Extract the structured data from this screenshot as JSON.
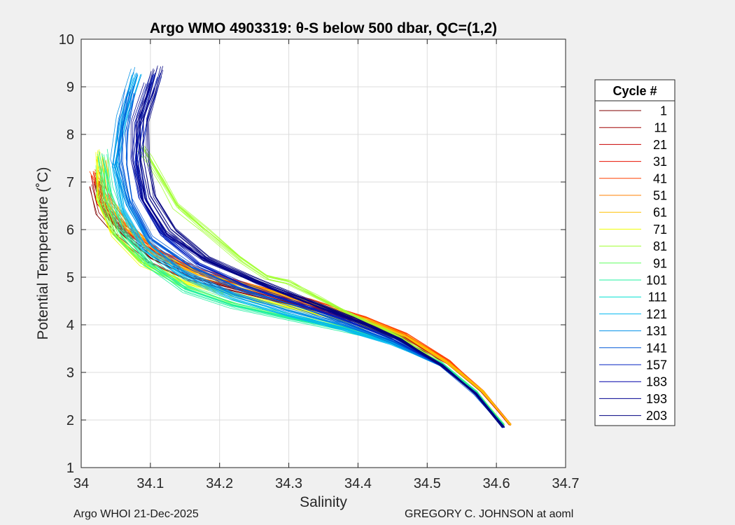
{
  "chart_data": {
    "type": "line",
    "title": "Argo WMO 4903319: θ-S below 500 dbar,  QC=(1,2)",
    "xlabel": "Salinity",
    "ylabel": "Potential Temperature (˚C)",
    "xlim": [
      34,
      34.7
    ],
    "ylim": [
      1,
      10
    ],
    "xticks": [
      "34",
      "34.1",
      "34.2",
      "34.3",
      "34.4",
      "34.5",
      "34.6",
      "34.7"
    ],
    "yticks": [
      "1",
      "2",
      "3",
      "4",
      "5",
      "6",
      "7",
      "8",
      "9",
      "10"
    ],
    "grid": true,
    "legend": {
      "title": "Cycle #",
      "placement": "right-outside",
      "entries": [
        {
          "label": "1",
          "color": "#7f0000"
        },
        {
          "label": "11",
          "color": "#a00000"
        },
        {
          "label": "21",
          "color": "#c80000"
        },
        {
          "label": "31",
          "color": "#e81000"
        },
        {
          "label": "41",
          "color": "#ff4000"
        },
        {
          "label": "51",
          "color": "#ff8000"
        },
        {
          "label": "61",
          "color": "#ffc000"
        },
        {
          "label": "71",
          "color": "#f0ff00"
        },
        {
          "label": "81",
          "color": "#a0ff30"
        },
        {
          "label": "91",
          "color": "#60ff60"
        },
        {
          "label": "101",
          "color": "#20f0a0"
        },
        {
          "label": "111",
          "color": "#00e0d0"
        },
        {
          "label": "121",
          "color": "#00b8f0"
        },
        {
          "label": "131",
          "color": "#0090e8"
        },
        {
          "label": "141",
          "color": "#0058d8"
        },
        {
          "label": "157",
          "color": "#0020c0"
        },
        {
          "label": "183",
          "color": "#0000a8"
        },
        {
          "label": "193",
          "color": "#000090"
        },
        {
          "label": "203",
          "color": "#000080"
        }
      ]
    },
    "series": [
      {
        "color": "#7f0000",
        "x": [
          34.62,
          34.58,
          34.53,
          34.47,
          34.4,
          34.32,
          34.24,
          34.16,
          34.1,
          34.06,
          34.03,
          34.02
        ],
        "y": [
          1.9,
          2.6,
          3.2,
          3.7,
          4.1,
          4.4,
          4.7,
          5.0,
          5.4,
          5.9,
          6.4,
          7.0
        ]
      },
      {
        "color": "#c80000",
        "x": [
          34.62,
          34.58,
          34.53,
          34.47,
          34.4,
          34.32,
          34.24,
          34.17,
          34.11,
          34.06,
          34.03,
          34.02
        ],
        "y": [
          1.9,
          2.6,
          3.2,
          3.7,
          4.1,
          4.45,
          4.8,
          5.1,
          5.5,
          6.0,
          6.5,
          7.1
        ]
      },
      {
        "color": "#ff4000",
        "x": [
          34.62,
          34.58,
          34.53,
          34.47,
          34.41,
          34.33,
          34.25,
          34.17,
          34.11,
          34.07,
          34.04,
          34.02
        ],
        "y": [
          1.9,
          2.6,
          3.25,
          3.8,
          4.15,
          4.5,
          4.8,
          5.1,
          5.5,
          6.0,
          6.5,
          7.2
        ]
      },
      {
        "color": "#ffc000",
        "x": [
          34.62,
          34.58,
          34.53,
          34.47,
          34.41,
          34.33,
          34.25,
          34.17,
          34.11,
          34.07,
          34.04,
          34.03
        ],
        "y": [
          1.9,
          2.6,
          3.2,
          3.75,
          4.1,
          4.45,
          4.75,
          5.05,
          5.45,
          6.0,
          6.6,
          7.4
        ]
      },
      {
        "color": "#f0ff00",
        "x": [
          34.61,
          34.57,
          34.52,
          34.46,
          34.39,
          34.31,
          34.23,
          34.15,
          34.09,
          34.05,
          34.03,
          34.03
        ],
        "y": [
          1.9,
          2.6,
          3.2,
          3.7,
          4.05,
          4.35,
          4.6,
          4.9,
          5.3,
          5.9,
          6.6,
          7.6
        ]
      },
      {
        "color": "#a0ff30",
        "x": [
          34.61,
          34.57,
          34.52,
          34.46,
          34.4,
          34.34,
          34.3,
          34.27,
          34.23,
          34.18,
          34.14,
          34.12,
          34.1,
          34.09
        ],
        "y": [
          1.9,
          2.6,
          3.2,
          3.75,
          4.15,
          4.6,
          4.9,
          5.0,
          5.4,
          6.0,
          6.5,
          7.0,
          7.5,
          7.7
        ]
      },
      {
        "color": "#60ff60",
        "x": [
          34.61,
          34.57,
          34.52,
          34.45,
          34.38,
          34.3,
          34.22,
          34.15,
          34.09,
          34.05,
          34.03,
          34.03
        ],
        "y": [
          1.9,
          2.6,
          3.2,
          3.65,
          3.95,
          4.2,
          4.45,
          4.8,
          5.3,
          5.9,
          6.6,
          7.3
        ]
      },
      {
        "color": "#20f0a0",
        "x": [
          34.61,
          34.57,
          34.52,
          34.45,
          34.38,
          34.3,
          34.22,
          34.15,
          34.1,
          34.06,
          34.04,
          34.03
        ],
        "y": [
          1.9,
          2.6,
          3.2,
          3.65,
          3.9,
          4.15,
          4.4,
          4.75,
          5.3,
          6.0,
          6.8,
          7.6
        ]
      },
      {
        "color": "#00b8f0",
        "x": [
          34.61,
          34.57,
          34.52,
          34.45,
          34.38,
          34.3,
          34.22,
          34.15,
          34.09,
          34.06,
          34.05,
          34.06,
          34.08
        ],
        "y": [
          1.85,
          2.55,
          3.15,
          3.6,
          3.9,
          4.2,
          4.55,
          5.0,
          5.6,
          6.4,
          7.3,
          8.2,
          9.2
        ]
      },
      {
        "color": "#0090e8",
        "x": [
          34.61,
          34.57,
          34.52,
          34.45,
          34.38,
          34.3,
          34.22,
          34.15,
          34.1,
          34.07,
          34.05,
          34.06,
          34.08
        ],
        "y": [
          1.85,
          2.55,
          3.15,
          3.65,
          4.0,
          4.3,
          4.65,
          5.1,
          5.7,
          6.5,
          7.4,
          8.3,
          9.3
        ]
      },
      {
        "color": "#0058d8",
        "x": [
          34.61,
          34.57,
          34.52,
          34.45,
          34.38,
          34.31,
          34.23,
          34.16,
          34.1,
          34.07,
          34.06,
          34.06,
          34.07
        ],
        "y": [
          1.85,
          2.55,
          3.15,
          3.65,
          4.05,
          4.4,
          4.75,
          5.2,
          5.8,
          6.6,
          7.4,
          8.1,
          8.9
        ]
      },
      {
        "color": "#0020c0",
        "x": [
          34.61,
          34.57,
          34.52,
          34.45,
          34.38,
          34.31,
          34.24,
          34.17,
          34.12,
          34.09,
          34.08,
          34.09,
          34.11
        ],
        "y": [
          1.85,
          2.55,
          3.15,
          3.7,
          4.1,
          4.45,
          4.8,
          5.25,
          5.85,
          6.6,
          7.4,
          8.3,
          9.2
        ]
      },
      {
        "color": "#000090",
        "x": [
          34.61,
          34.57,
          34.52,
          34.46,
          34.39,
          34.32,
          34.25,
          34.18,
          34.12,
          34.09,
          34.08,
          34.08,
          34.1
        ],
        "y": [
          1.85,
          2.55,
          3.15,
          3.7,
          4.1,
          4.5,
          4.9,
          5.35,
          5.9,
          6.6,
          7.4,
          8.2,
          9.0
        ]
      },
      {
        "color": "#000080",
        "x": [
          34.61,
          34.57,
          34.52,
          34.46,
          34.39,
          34.32,
          34.25,
          34.18,
          34.13,
          34.1,
          34.09,
          34.09,
          34.11
        ],
        "y": [
          1.85,
          2.55,
          3.15,
          3.7,
          4.15,
          4.55,
          4.95,
          5.4,
          6.0,
          6.7,
          7.5,
          8.3,
          9.4
        ]
      }
    ]
  },
  "footer": {
    "left": "Argo WHOI 21-Dec-2025",
    "right": "GREGORY C. JOHNSON at aoml"
  }
}
